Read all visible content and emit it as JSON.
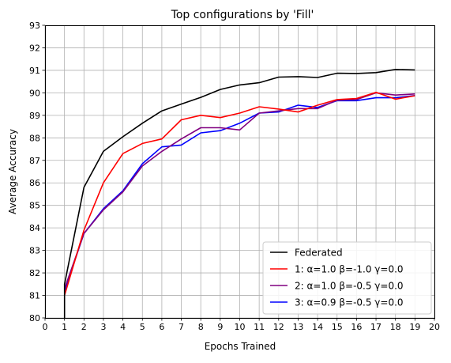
{
  "chart_data": {
    "type": "line",
    "title": "Top configurations by 'Fill'",
    "xlabel": "Epochs Trained",
    "ylabel": "Average Accuracy",
    "xlim": [
      0,
      20
    ],
    "ylim": [
      80,
      93
    ],
    "xticks": [
      0,
      1,
      2,
      3,
      4,
      5,
      6,
      7,
      8,
      9,
      10,
      11,
      12,
      13,
      14,
      15,
      16,
      17,
      18,
      19,
      20
    ],
    "yticks": [
      80,
      81,
      82,
      83,
      84,
      85,
      86,
      87,
      88,
      89,
      90,
      91,
      92,
      93
    ],
    "grid": true,
    "legend_position": "lower-right",
    "x": [
      1,
      2,
      3,
      4,
      5,
      6,
      7,
      8,
      9,
      10,
      11,
      12,
      13,
      14,
      15,
      16,
      17,
      18,
      19
    ],
    "series": [
      {
        "name": "Federated",
        "color": "#000000",
        "values": [
          81.5,
          85.8,
          87.4,
          88.05,
          88.65,
          89.2,
          89.5,
          89.8,
          90.15,
          90.35,
          90.45,
          90.7,
          90.72,
          90.68,
          90.87,
          90.86,
          90.9,
          91.04,
          91.02
        ],
        "drop_start": 80.0
      },
      {
        "name": "1: α=1.0  β=-1.0  γ=0.0",
        "color": "#ff0000",
        "values": [
          81.0,
          83.9,
          86.0,
          87.3,
          87.75,
          87.95,
          88.8,
          89.0,
          88.9,
          89.1,
          89.38,
          89.28,
          89.15,
          89.45,
          89.7,
          89.75,
          90.02,
          89.72,
          89.87
        ],
        "drop_start": null
      },
      {
        "name": "2: α=1.0  β=-0.5  γ=0.0",
        "color": "#800080",
        "values": [
          81.3,
          83.75,
          84.8,
          85.6,
          86.75,
          87.4,
          87.95,
          88.45,
          88.45,
          88.35,
          89.1,
          89.2,
          89.3,
          89.3,
          89.68,
          89.7,
          90.0,
          89.9,
          89.95
        ],
        "drop_start": null
      },
      {
        "name": "3: α=0.9  β=-0.5  γ=0.0",
        "color": "#0000ff",
        "values": [
          81.2,
          83.75,
          84.85,
          85.65,
          86.85,
          87.6,
          87.68,
          88.22,
          88.32,
          88.65,
          89.1,
          89.15,
          89.45,
          89.35,
          89.65,
          89.65,
          89.78,
          89.78,
          89.88
        ],
        "drop_start": null
      }
    ]
  }
}
